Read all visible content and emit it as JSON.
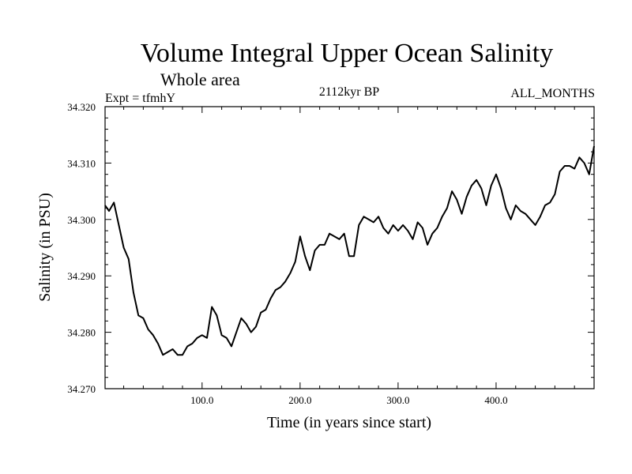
{
  "chart_data": {
    "type": "line",
    "title": "Volume Integral Upper Ocean Salinity",
    "subtitle": "Whole area",
    "experiment": "Expt = tfmhY",
    "period": "2112kyr BP",
    "months": "ALL_MONTHS",
    "xlabel": "Time (in years since start)",
    "ylabel": "Salinity (in PSU)",
    "xlim": [
      1,
      500
    ],
    "ylim": [
      34.27,
      34.32
    ],
    "xticks": [
      100,
      200,
      300,
      400
    ],
    "xtick_labels": [
      "100.0",
      "200.0",
      "300.0",
      "400.0"
    ],
    "yticks": [
      34.27,
      34.28,
      34.29,
      34.3,
      34.31,
      34.32
    ],
    "ytick_labels": [
      "34.270",
      "34.280",
      "34.290",
      "34.300",
      "34.310",
      "34.320"
    ],
    "series": [
      {
        "name": "Volume Integral Upper Ocean Salinity",
        "x": [
          1,
          5,
          10,
          15,
          20,
          25,
          30,
          35,
          40,
          45,
          50,
          55,
          60,
          65,
          70,
          75,
          80,
          85,
          90,
          95,
          100,
          105,
          110,
          115,
          120,
          125,
          130,
          135,
          140,
          145,
          150,
          155,
          160,
          165,
          170,
          175,
          180,
          185,
          190,
          195,
          200,
          205,
          210,
          215,
          220,
          225,
          230,
          235,
          240,
          245,
          250,
          255,
          260,
          265,
          270,
          275,
          280,
          285,
          290,
          295,
          300,
          305,
          310,
          315,
          320,
          325,
          330,
          335,
          340,
          345,
          350,
          355,
          360,
          365,
          370,
          375,
          380,
          385,
          390,
          395,
          400,
          405,
          410,
          415,
          420,
          425,
          430,
          435,
          440,
          445,
          450,
          455,
          460,
          465,
          470,
          475,
          480,
          485,
          490,
          495,
          500
        ],
        "values": [
          34.3025,
          34.3015,
          34.303,
          34.299,
          34.295,
          34.293,
          34.287,
          34.283,
          34.2825,
          34.2805,
          34.2795,
          34.278,
          34.276,
          34.2765,
          34.277,
          34.276,
          34.276,
          34.2775,
          34.278,
          34.279,
          34.2795,
          34.279,
          34.2845,
          34.283,
          34.2795,
          34.279,
          34.2775,
          34.28,
          34.2825,
          34.2815,
          34.28,
          34.281,
          34.2835,
          34.284,
          34.286,
          34.2875,
          34.288,
          34.289,
          34.2905,
          34.2925,
          34.297,
          34.2935,
          34.291,
          34.2945,
          34.2955,
          34.2955,
          34.2975,
          34.297,
          34.2965,
          34.2975,
          34.2935,
          34.2935,
          34.299,
          34.3005,
          34.3,
          34.2995,
          34.3005,
          34.2985,
          34.2975,
          34.299,
          34.298,
          34.299,
          34.298,
          34.2965,
          34.2995,
          34.2985,
          34.2955,
          34.2975,
          34.2985,
          34.3005,
          34.302,
          34.305,
          34.3035,
          34.301,
          34.304,
          34.306,
          34.307,
          34.3055,
          34.3025,
          34.306,
          34.308,
          34.3055,
          34.302,
          34.3,
          34.3025,
          34.3015,
          34.301,
          34.3,
          34.299,
          34.3005,
          34.3025,
          34.303,
          34.3045,
          34.3085,
          34.3095,
          34.3095,
          34.309,
          34.311,
          34.31,
          34.308,
          34.313
        ]
      }
    ]
  }
}
